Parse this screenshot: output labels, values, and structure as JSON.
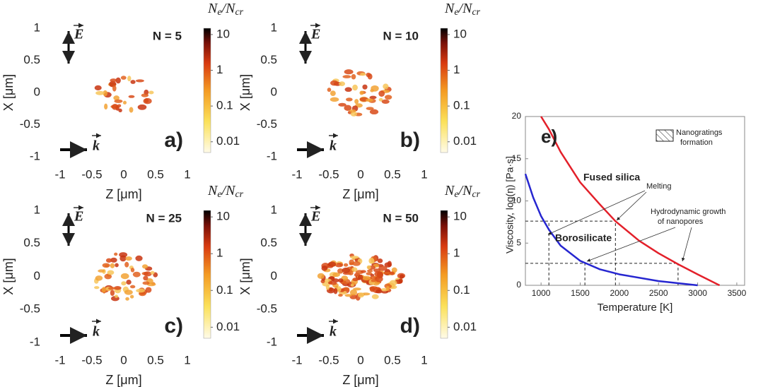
{
  "chart_data": [
    {
      "type": "heatmap",
      "title": "N = 5",
      "panel_label": "a)",
      "xlabel": "Z [μm]",
      "ylabel": "X [μm]",
      "xlim": [
        -1,
        1
      ],
      "ylim": [
        -1,
        1
      ],
      "xticks": [
        -1,
        -0.5,
        0,
        0.5,
        1
      ],
      "yticks": [
        -1,
        -0.5,
        0,
        0.5,
        1
      ],
      "colorbar_label_parts": [
        "N",
        "e",
        "/N",
        "cr"
      ],
      "colorbar_ticks": [
        10,
        1,
        0.1,
        0.01
      ],
      "clim": [
        0.005,
        15
      ],
      "colorbar_log": true,
      "field_label": "E",
      "wave_label": "k"
    },
    {
      "type": "heatmap",
      "title": "N = 10",
      "panel_label": "b)",
      "xlabel": "Z [μm]",
      "ylabel": "X [μm]",
      "xlim": [
        -1,
        1
      ],
      "ylim": [
        -1,
        1
      ],
      "xticks": [
        -1,
        -0.5,
        0,
        0.5,
        1
      ],
      "yticks": [
        -1,
        -0.5,
        0,
        0.5,
        1
      ],
      "colorbar_label_parts": [
        "N",
        "e",
        "/N",
        "cr"
      ],
      "colorbar_ticks": [
        10,
        1,
        0.1,
        0.01
      ],
      "clim": [
        0.005,
        15
      ],
      "colorbar_log": true,
      "field_label": "E",
      "wave_label": "k"
    },
    {
      "type": "heatmap",
      "title": "N = 25",
      "panel_label": "c)",
      "xlabel": "Z [μm]",
      "ylabel": "X [μm]",
      "xlim": [
        -1,
        1
      ],
      "ylim": [
        -1,
        1
      ],
      "xticks": [
        -1,
        -0.5,
        0,
        0.5,
        1
      ],
      "yticks": [
        -1,
        -0.5,
        0,
        0.5,
        1
      ],
      "colorbar_label_parts": [
        "N",
        "e",
        "/N",
        "cr"
      ],
      "colorbar_ticks": [
        10,
        1,
        0.1,
        0.01
      ],
      "clim": [
        0.005,
        15
      ],
      "colorbar_log": true,
      "field_label": "E",
      "wave_label": "k"
    },
    {
      "type": "heatmap",
      "title": "N = 50",
      "panel_label": "d)",
      "xlabel": "Z [μm]",
      "ylabel": "X [μm]",
      "xlim": [
        -1,
        1
      ],
      "ylim": [
        -1,
        1
      ],
      "xticks": [
        -1,
        -0.5,
        0,
        0.5,
        1
      ],
      "yticks": [
        -1,
        -0.5,
        0,
        0.5,
        1
      ],
      "colorbar_label_parts": [
        "N",
        "e",
        "/N",
        "cr"
      ],
      "colorbar_ticks": [
        10,
        1,
        0.1,
        0.01
      ],
      "clim": [
        0.005,
        15
      ],
      "colorbar_log": true,
      "field_label": "E",
      "wave_label": "k"
    },
    {
      "type": "line",
      "panel_label": "e)",
      "xlabel": "Temperature [K]",
      "ylabel": "Viscosity, log(η) [Pa·s]",
      "xlim": [
        800,
        3600
      ],
      "ylim": [
        0,
        20
      ],
      "xticks": [
        1000,
        1500,
        2000,
        2500,
        3000,
        3500
      ],
      "yticks": [
        0,
        5,
        10,
        15,
        20
      ],
      "series": [
        {
          "name": "Fused silica",
          "color": "#e3202a",
          "x": [
            1000,
            1100,
            1250,
            1500,
            1750,
            1950,
            2250,
            2500,
            2750,
            3000,
            3280
          ],
          "values": [
            20,
            18.5,
            15.8,
            12.2,
            9.6,
            7.6,
            5.3,
            3.8,
            2.5,
            1.3,
            0
          ]
        },
        {
          "name": "Borosilicate",
          "color": "#2626d0",
          "x": [
            800,
            900,
            1000,
            1100,
            1250,
            1500,
            1750,
            2000,
            2500,
            3000
          ],
          "values": [
            13.2,
            10.4,
            8.2,
            6.6,
            4.7,
            2.9,
            1.9,
            1.3,
            0.5,
            0
          ]
        }
      ],
      "ref_y": [
        7.6,
        2.6
      ],
      "ref_x": [
        1100,
        1950,
        1560,
        2750
      ],
      "annotations": [
        "Melting",
        "Hydrodynamic growth",
        "of nanopores"
      ],
      "legend_label_lines": [
        "Nanogratings",
        "formation"
      ]
    }
  ]
}
